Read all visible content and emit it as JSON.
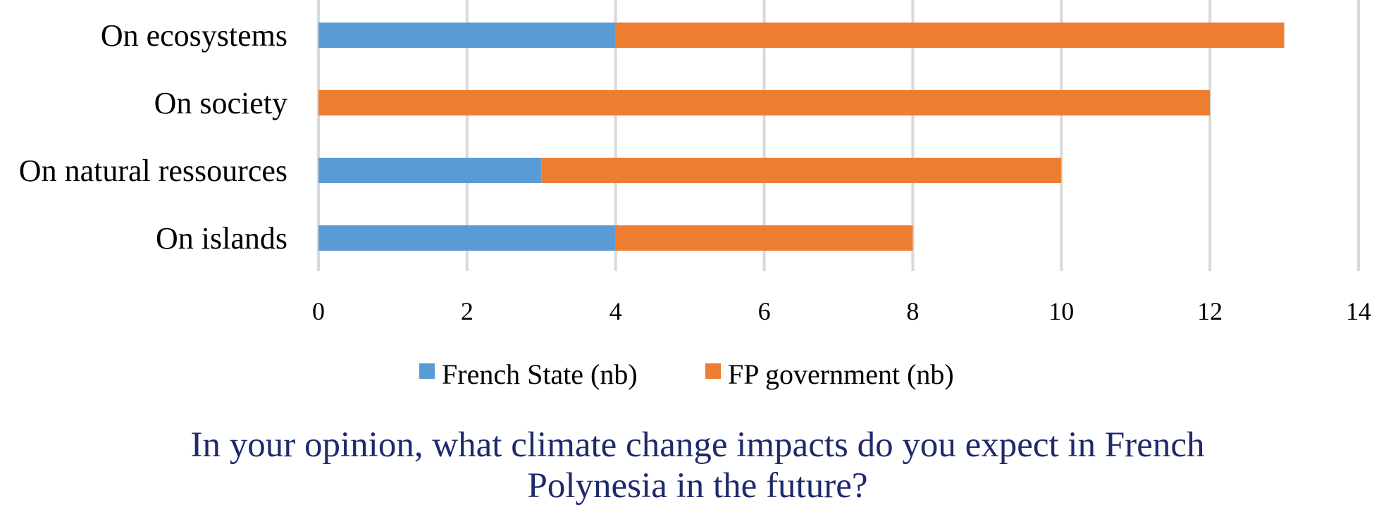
{
  "chart_data": {
    "type": "bar",
    "orientation": "horizontal",
    "stacked": true,
    "categories": [
      "On ecosystems",
      "On society",
      "On natural ressources",
      "On islands"
    ],
    "series": [
      {
        "name": "French State (nb)",
        "color": "#5b9bd5",
        "values": [
          4,
          0,
          3,
          4
        ]
      },
      {
        "name": "FP government (nb)",
        "color": "#ed7d31",
        "values": [
          9,
          12,
          7,
          4
        ]
      }
    ],
    "xlim": [
      0,
      14
    ],
    "xticks": [
      0,
      2,
      4,
      6,
      8,
      10,
      12,
      14
    ],
    "xlabel": "",
    "ylabel": "",
    "grid": "vertical",
    "legend_position": "bottom",
    "title_lines": [
      "In your opinion, what climate change impacts do you expect in French",
      "Polynesia in the future?"
    ],
    "title_color": "#1f2a6b"
  }
}
